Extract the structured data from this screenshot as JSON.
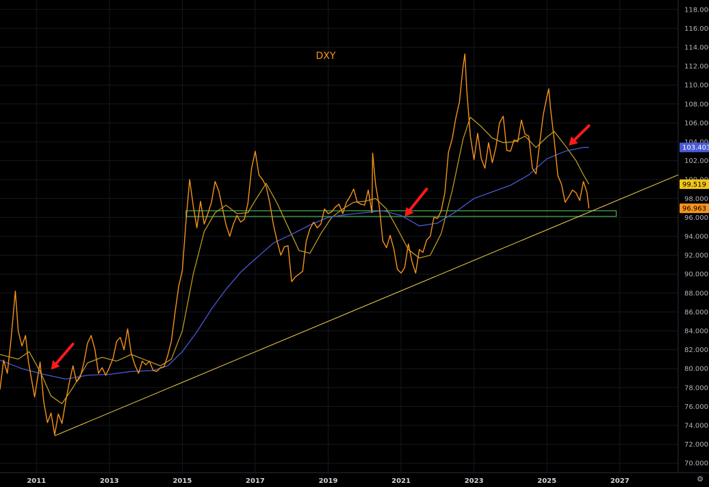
{
  "chart_data": {
    "type": "line",
    "title": "DXY",
    "xlim": [
      2010.0,
      2028.6
    ],
    "ylim": [
      69.0,
      119.0
    ],
    "x_ticks": [
      "2011",
      "2013",
      "2015",
      "2017",
      "2019",
      "2021",
      "2023",
      "2025",
      "2027"
    ],
    "y_ticks": [
      "70.000",
      "72.000",
      "74.000",
      "76.000",
      "78.000",
      "80.000",
      "82.000",
      "84.000",
      "86.000",
      "88.000",
      "90.000",
      "92.000",
      "94.000",
      "96.000",
      "98.000",
      "100.000",
      "102.000",
      "104.000",
      "106.000",
      "108.000",
      "110.000",
      "112.000",
      "114.000",
      "116.000",
      "118.000"
    ],
    "series": [
      {
        "role": "price",
        "color": "#f7931a",
        "points": [
          [
            2010.0,
            77.8
          ],
          [
            2010.1,
            80.9
          ],
          [
            2010.2,
            79.5
          ],
          [
            2010.3,
            83.0
          ],
          [
            2010.42,
            88.2
          ],
          [
            2010.5,
            84.0
          ],
          [
            2010.6,
            82.4
          ],
          [
            2010.7,
            83.5
          ],
          [
            2010.78,
            80.7
          ],
          [
            2010.85,
            79.2
          ],
          [
            2010.95,
            77.0
          ],
          [
            2011.1,
            80.7
          ],
          [
            2011.2,
            76.5
          ],
          [
            2011.3,
            74.3
          ],
          [
            2011.4,
            75.3
          ],
          [
            2011.5,
            73.0
          ],
          [
            2011.6,
            75.2
          ],
          [
            2011.7,
            74.2
          ],
          [
            2011.8,
            76.5
          ],
          [
            2011.9,
            78.5
          ],
          [
            2012.0,
            80.3
          ],
          [
            2012.1,
            78.6
          ],
          [
            2012.2,
            79.1
          ],
          [
            2012.3,
            80.6
          ],
          [
            2012.4,
            82.7
          ],
          [
            2012.5,
            83.5
          ],
          [
            2012.6,
            82.1
          ],
          [
            2012.7,
            79.5
          ],
          [
            2012.8,
            80.1
          ],
          [
            2012.9,
            79.3
          ],
          [
            2013.0,
            80.1
          ],
          [
            2013.1,
            81.1
          ],
          [
            2013.2,
            82.9
          ],
          [
            2013.3,
            83.3
          ],
          [
            2013.4,
            82.0
          ],
          [
            2013.5,
            84.2
          ],
          [
            2013.6,
            81.6
          ],
          [
            2013.7,
            80.4
          ],
          [
            2013.8,
            79.5
          ],
          [
            2013.9,
            80.8
          ],
          [
            2014.0,
            80.4
          ],
          [
            2014.1,
            80.8
          ],
          [
            2014.2,
            79.8
          ],
          [
            2014.3,
            79.7
          ],
          [
            2014.4,
            80.1
          ],
          [
            2014.5,
            80.2
          ],
          [
            2014.6,
            81.4
          ],
          [
            2014.7,
            82.9
          ],
          [
            2014.8,
            85.9
          ],
          [
            2014.9,
            88.7
          ],
          [
            2015.0,
            90.4
          ],
          [
            2015.1,
            95.5
          ],
          [
            2015.2,
            100.0
          ],
          [
            2015.3,
            97.2
          ],
          [
            2015.4,
            94.9
          ],
          [
            2015.5,
            97.7
          ],
          [
            2015.6,
            95.3
          ],
          [
            2015.7,
            96.4
          ],
          [
            2015.8,
            97.6
          ],
          [
            2015.9,
            99.8
          ],
          [
            2016.0,
            98.8
          ],
          [
            2016.1,
            97.0
          ],
          [
            2016.2,
            95.2
          ],
          [
            2016.3,
            94.0
          ],
          [
            2016.4,
            95.3
          ],
          [
            2016.5,
            96.2
          ],
          [
            2016.6,
            95.5
          ],
          [
            2016.7,
            95.8
          ],
          [
            2016.8,
            97.5
          ],
          [
            2016.9,
            101.2
          ],
          [
            2017.0,
            103.0
          ],
          [
            2017.1,
            100.5
          ],
          [
            2017.2,
            100.0
          ],
          [
            2017.3,
            99.3
          ],
          [
            2017.4,
            97.5
          ],
          [
            2017.5,
            95.2
          ],
          [
            2017.6,
            93.5
          ],
          [
            2017.7,
            92.0
          ],
          [
            2017.8,
            92.9
          ],
          [
            2017.9,
            93.0
          ],
          [
            2018.0,
            89.2
          ],
          [
            2018.1,
            89.7
          ],
          [
            2018.2,
            90.0
          ],
          [
            2018.3,
            90.3
          ],
          [
            2018.4,
            93.5
          ],
          [
            2018.5,
            94.8
          ],
          [
            2018.6,
            95.5
          ],
          [
            2018.7,
            94.9
          ],
          [
            2018.8,
            95.3
          ],
          [
            2018.9,
            96.9
          ],
          [
            2019.0,
            96.4
          ],
          [
            2019.1,
            96.6
          ],
          [
            2019.2,
            97.1
          ],
          [
            2019.3,
            97.4
          ],
          [
            2019.4,
            96.4
          ],
          [
            2019.5,
            97.6
          ],
          [
            2019.6,
            98.2
          ],
          [
            2019.7,
            99.0
          ],
          [
            2019.8,
            97.6
          ],
          [
            2019.9,
            97.4
          ],
          [
            2020.0,
            97.3
          ],
          [
            2020.1,
            98.9
          ],
          [
            2020.2,
            96.5
          ],
          [
            2020.22,
            102.8
          ],
          [
            2020.3,
            99.5
          ],
          [
            2020.4,
            97.2
          ],
          [
            2020.5,
            93.5
          ],
          [
            2020.6,
            92.8
          ],
          [
            2020.7,
            94.1
          ],
          [
            2020.8,
            92.7
          ],
          [
            2020.9,
            90.5
          ],
          [
            2021.0,
            90.1
          ],
          [
            2021.1,
            90.7
          ],
          [
            2021.2,
            93.2
          ],
          [
            2021.3,
            91.3
          ],
          [
            2021.4,
            90.1
          ],
          [
            2021.5,
            92.6
          ],
          [
            2021.6,
            92.3
          ],
          [
            2021.7,
            93.6
          ],
          [
            2021.8,
            94.0
          ],
          [
            2021.9,
            96.0
          ],
          [
            2022.0,
            95.9
          ],
          [
            2022.1,
            96.7
          ],
          [
            2022.2,
            98.6
          ],
          [
            2022.3,
            102.9
          ],
          [
            2022.4,
            104.3
          ],
          [
            2022.5,
            106.5
          ],
          [
            2022.6,
            108.2
          ],
          [
            2022.7,
            112.0
          ],
          [
            2022.75,
            113.3
          ],
          [
            2022.8,
            109.5
          ],
          [
            2022.9,
            104.6
          ],
          [
            2023.0,
            102.1
          ],
          [
            2023.1,
            104.9
          ],
          [
            2023.2,
            102.2
          ],
          [
            2023.3,
            101.2
          ],
          [
            2023.4,
            103.9
          ],
          [
            2023.5,
            101.8
          ],
          [
            2023.6,
            103.4
          ],
          [
            2023.7,
            106.0
          ],
          [
            2023.8,
            106.7
          ],
          [
            2023.9,
            103.1
          ],
          [
            2024.0,
            103.0
          ],
          [
            2024.1,
            104.2
          ],
          [
            2024.2,
            104.0
          ],
          [
            2024.3,
            106.3
          ],
          [
            2024.4,
            104.8
          ],
          [
            2024.5,
            104.6
          ],
          [
            2024.6,
            101.2
          ],
          [
            2024.7,
            100.6
          ],
          [
            2024.8,
            103.8
          ],
          [
            2024.9,
            106.9
          ],
          [
            2025.0,
            108.8
          ],
          [
            2025.05,
            109.6
          ],
          [
            2025.1,
            107.5
          ],
          [
            2025.2,
            104.2
          ],
          [
            2025.3,
            100.4
          ],
          [
            2025.4,
            99.5
          ],
          [
            2025.5,
            97.6
          ],
          [
            2025.6,
            98.2
          ],
          [
            2025.7,
            98.9
          ],
          [
            2025.8,
            98.6
          ],
          [
            2025.9,
            97.8
          ],
          [
            2026.0,
            99.8
          ],
          [
            2026.1,
            98.6
          ],
          [
            2026.15,
            96.96
          ]
        ]
      },
      {
        "role": "moving-average-fast",
        "color": "#bd9a1f",
        "points": [
          [
            2010.0,
            81.5
          ],
          [
            2010.5,
            81.0
          ],
          [
            2010.8,
            81.8
          ],
          [
            2011.1,
            79.7
          ],
          [
            2011.4,
            77.1
          ],
          [
            2011.7,
            76.3
          ],
          [
            2012.0,
            78.0
          ],
          [
            2012.4,
            80.6
          ],
          [
            2012.8,
            81.2
          ],
          [
            2013.2,
            80.8
          ],
          [
            2013.6,
            81.5
          ],
          [
            2014.0,
            80.9
          ],
          [
            2014.4,
            80.3
          ],
          [
            2014.7,
            81.0
          ],
          [
            2015.0,
            84.0
          ],
          [
            2015.3,
            90.0
          ],
          [
            2015.6,
            94.5
          ],
          [
            2015.9,
            96.5
          ],
          [
            2016.2,
            97.3
          ],
          [
            2016.5,
            96.4
          ],
          [
            2016.8,
            96.5
          ],
          [
            2017.0,
            97.8
          ],
          [
            2017.3,
            99.6
          ],
          [
            2017.6,
            97.5
          ],
          [
            2017.9,
            95.0
          ],
          [
            2018.2,
            92.5
          ],
          [
            2018.5,
            92.2
          ],
          [
            2018.8,
            94.3
          ],
          [
            2019.1,
            96.0
          ],
          [
            2019.4,
            96.9
          ],
          [
            2019.7,
            97.6
          ],
          [
            2020.0,
            97.7
          ],
          [
            2020.3,
            98.0
          ],
          [
            2020.6,
            96.9
          ],
          [
            2020.9,
            94.8
          ],
          [
            2021.2,
            92.6
          ],
          [
            2021.5,
            91.7
          ],
          [
            2021.8,
            92.0
          ],
          [
            2022.1,
            94.3
          ],
          [
            2022.4,
            98.8
          ],
          [
            2022.7,
            104.3
          ],
          [
            2022.9,
            106.6
          ],
          [
            2023.2,
            105.6
          ],
          [
            2023.5,
            104.4
          ],
          [
            2023.8,
            103.9
          ],
          [
            2024.1,
            104.0
          ],
          [
            2024.4,
            104.6
          ],
          [
            2024.7,
            103.4
          ],
          [
            2025.0,
            104.5
          ],
          [
            2025.2,
            105.1
          ],
          [
            2025.5,
            103.6
          ],
          [
            2025.8,
            102.0
          ],
          [
            2026.0,
            100.5
          ],
          [
            2026.15,
            99.52
          ]
        ]
      },
      {
        "role": "moving-average-slow",
        "color": "#4a5ad6",
        "points": [
          [
            2010.0,
            80.9
          ],
          [
            2010.6,
            80.0
          ],
          [
            2011.2,
            79.4
          ],
          [
            2011.8,
            78.9
          ],
          [
            2012.4,
            79.3
          ],
          [
            2013.0,
            79.4
          ],
          [
            2013.6,
            79.7
          ],
          [
            2014.2,
            79.8
          ],
          [
            2014.6,
            80.3
          ],
          [
            2015.0,
            81.8
          ],
          [
            2015.4,
            83.9
          ],
          [
            2015.8,
            86.3
          ],
          [
            2016.2,
            88.4
          ],
          [
            2016.6,
            90.2
          ],
          [
            2017.0,
            91.6
          ],
          [
            2017.5,
            93.3
          ],
          [
            2018.0,
            94.2
          ],
          [
            2018.5,
            95.2
          ],
          [
            2019.0,
            96.0
          ],
          [
            2019.5,
            96.3
          ],
          [
            2020.0,
            96.5
          ],
          [
            2020.5,
            96.7
          ],
          [
            2021.0,
            96.2
          ],
          [
            2021.5,
            95.1
          ],
          [
            2022.0,
            95.4
          ],
          [
            2022.5,
            96.6
          ],
          [
            2023.0,
            98.0
          ],
          [
            2023.5,
            98.7
          ],
          [
            2024.0,
            99.4
          ],
          [
            2024.5,
            100.5
          ],
          [
            2025.0,
            102.2
          ],
          [
            2025.5,
            103.0
          ],
          [
            2026.0,
            103.4
          ],
          [
            2026.15,
            103.4
          ]
        ]
      }
    ],
    "annotations": {
      "trendline": {
        "color": "#f5d547",
        "from": [
          2011.5,
          72.9
        ],
        "to": [
          2028.6,
          100.5
        ]
      },
      "support_zone": {
        "color": "#4caf50",
        "x": [
          2015.1,
          2026.9
        ],
        "y": [
          96.1,
          96.7
        ]
      },
      "arrows": [
        {
          "color": "#ff1a1a",
          "tip": [
            2011.4,
            79.9
          ],
          "tail": [
            2012.0,
            82.6
          ]
        },
        {
          "color": "#ff1a1a",
          "tip": [
            2021.1,
            96.1
          ],
          "tail": [
            2021.7,
            99.0
          ]
        },
        {
          "color": "#ff1a1a",
          "tip": [
            2025.6,
            103.6
          ],
          "tail": [
            2026.15,
            105.7
          ]
        }
      ]
    },
    "price_labels": [
      {
        "label": "103.403",
        "value": 103.403,
        "bg": "#4a5ad6",
        "fg": "#ffffff"
      },
      {
        "label": "99.519",
        "value": 99.519,
        "bg": "#f5c518",
        "fg": "#000000"
      },
      {
        "label": "96.963",
        "value": 96.963,
        "bg": "#f7931a",
        "fg": "#000000"
      }
    ]
  },
  "settings_icon": "gear-icon"
}
